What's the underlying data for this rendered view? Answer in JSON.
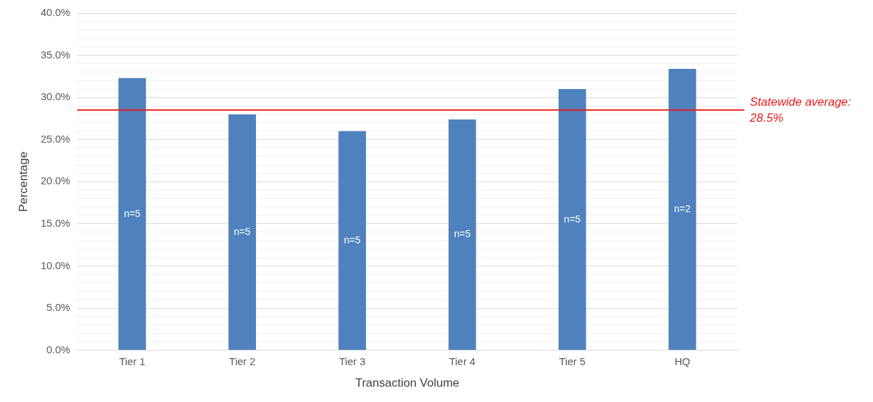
{
  "chart_data": {
    "type": "bar",
    "xlabel": "Transaction Volume",
    "ylabel": "Percentage",
    "categories": [
      "Tier 1",
      "Tier 2",
      "Tier 3",
      "Tier 4",
      "Tier 5",
      "HQ"
    ],
    "values": [
      32.3,
      28.0,
      26.0,
      27.4,
      31.0,
      33.4
    ],
    "color": "#4f81bd",
    "ylim": [
      0,
      40
    ],
    "yticks": [
      {
        "value": 0,
        "label": "0.0%"
      },
      {
        "value": 1,
        "label": null
      },
      {
        "value": 2,
        "label": null
      },
      {
        "value": 3,
        "label": null
      },
      {
        "value": 4,
        "label": null
      },
      {
        "value": 5,
        "label": "5.0%"
      },
      {
        "value": 6,
        "label": null
      },
      {
        "value": 7,
        "label": null
      },
      {
        "value": 8,
        "label": null
      },
      {
        "value": 9,
        "label": null
      },
      {
        "value": 10,
        "label": "10.0%"
      },
      {
        "value": 11,
        "label": null
      },
      {
        "value": 12,
        "label": null
      },
      {
        "value": 13,
        "label": null
      },
      {
        "value": 14,
        "label": null
      },
      {
        "value": 15,
        "label": "15.0%"
      },
      {
        "value": 16,
        "label": null
      },
      {
        "value": 17,
        "label": null
      },
      {
        "value": 18,
        "label": null
      },
      {
        "value": 19,
        "label": null
      },
      {
        "value": 20,
        "label": "20.0%"
      },
      {
        "value": 21,
        "label": null
      },
      {
        "value": 22,
        "label": null
      },
      {
        "value": 23,
        "label": null
      },
      {
        "value": 24,
        "label": null
      },
      {
        "value": 25,
        "label": "25.0%"
      },
      {
        "value": 26,
        "label": null
      },
      {
        "value": 27,
        "label": null
      },
      {
        "value": 28,
        "label": null
      },
      {
        "value": 29,
        "label": null
      },
      {
        "value": 30,
        "label": "30.0%"
      },
      {
        "value": 31,
        "label": null
      },
      {
        "value": 32,
        "label": null
      },
      {
        "value": 33,
        "label": null
      },
      {
        "value": 34,
        "label": null
      },
      {
        "value": 35,
        "label": "35.0%"
      },
      {
        "value": 36,
        "label": null
      },
      {
        "value": 37,
        "label": null
      },
      {
        "value": 38,
        "label": null
      },
      {
        "value": 39,
        "label": null
      },
      {
        "value": 40,
        "label": "40.0%"
      }
    ],
    "grid": "y",
    "ref_lines": [
      {
        "axis": "y",
        "value": 28.5,
        "label": "Statewide average:\n28.5%",
        "color": "#e81c1c"
      }
    ],
    "annotations": [
      "n=5",
      "n=5",
      "n=5",
      "n=5",
      "n=5",
      "n=2"
    ]
  }
}
